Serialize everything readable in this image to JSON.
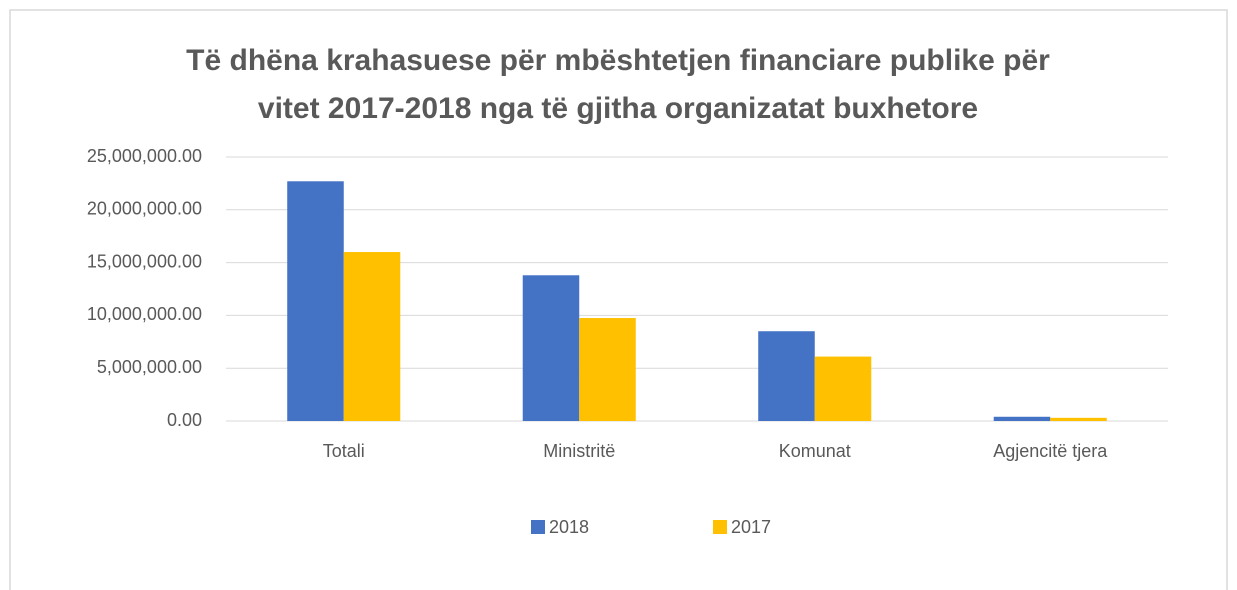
{
  "chart_data": {
    "type": "bar",
    "title": [
      "Të dhëna krahasuese për mbështetjen financiare publike për",
      "vitet 2017-2018 nga të gjitha organizatat buxhetore"
    ],
    "categories": [
      "Totali",
      "Ministritë",
      "Komunat",
      "Agjencitë tjera"
    ],
    "series": [
      {
        "name": "2018",
        "color": "#4472c4",
        "values": [
          22700000,
          13800000,
          8500000,
          400000
        ]
      },
      {
        "name": "2017",
        "color": "#ffc000",
        "values": [
          16000000,
          9750000,
          6100000,
          300000
        ]
      }
    ],
    "ylim": [
      0,
      25000000
    ],
    "yticks": [
      {
        "value": 0,
        "label": "0.00"
      },
      {
        "value": 5000000,
        "label": "5,000,000.00"
      },
      {
        "value": 10000000,
        "label": "10,000,000.00"
      },
      {
        "value": 15000000,
        "label": "15,000,000.00"
      },
      {
        "value": 20000000,
        "label": "20,000,000.00"
      },
      {
        "value": 25000000,
        "label": "25,000,000.00"
      }
    ],
    "grid": true,
    "legend": "bottom"
  }
}
